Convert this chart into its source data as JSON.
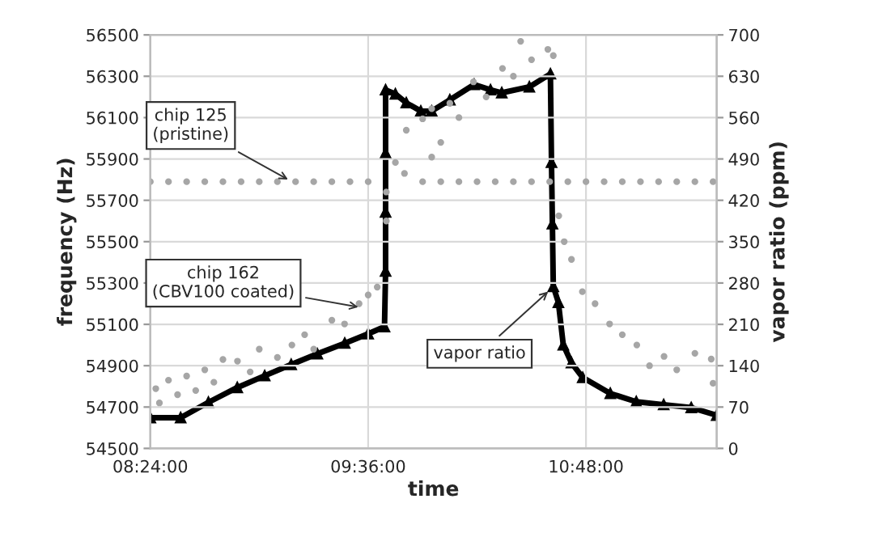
{
  "chart_data": {
    "type": "scatter",
    "xlabel": "time",
    "ylabel": "frequency (Hz)",
    "y2label": "vapor ratio (ppm)",
    "xlim": [
      8.4,
      11.52
    ],
    "xticks": [
      {
        "value": 8.4,
        "label": "08:24:00"
      },
      {
        "value": 9.6,
        "label": "09:36:00"
      },
      {
        "value": 10.8,
        "label": "10:48:00"
      }
    ],
    "ylim": [
      54500,
      56500
    ],
    "yticks": [
      54500,
      54700,
      54900,
      55100,
      55300,
      55500,
      55700,
      55900,
      56100,
      56300,
      56500
    ],
    "y2lim": [
      0,
      700
    ],
    "y2ticks": [
      0,
      70,
      140,
      210,
      280,
      350,
      420,
      490,
      560,
      630,
      700
    ],
    "grid": true,
    "legend": false,
    "series": [
      {
        "marker": "circle",
        "color": "#a6a6a6",
        "x": [
          8.4,
          8.5,
          8.6,
          8.7,
          8.8,
          8.9,
          9.0,
          9.1,
          9.2,
          9.3,
          9.4,
          9.5,
          9.6,
          9.7,
          9.8,
          9.9,
          10.0,
          10.1,
          10.2,
          10.3,
          10.4,
          10.5,
          10.6,
          10.7,
          10.8,
          10.9,
          11.0,
          11.1,
          11.2,
          11.3,
          11.4,
          11.5
        ],
        "values": [
          55790,
          55790,
          55790,
          55790,
          55790,
          55790,
          55790,
          55790,
          55790,
          55790,
          55790,
          55790,
          55790,
          55740,
          55830,
          55790,
          55790,
          55790,
          55790,
          55790,
          55790,
          55790,
          55790,
          55790,
          55790,
          55790,
          55790,
          55790,
          55790,
          55790,
          55790,
          55790
        ]
      },
      {
        "marker": "circle",
        "color": "#a6a6a6",
        "x": [
          8.43,
          8.45,
          8.5,
          8.55,
          8.6,
          8.65,
          8.7,
          8.75,
          8.8,
          8.88,
          8.95,
          9.0,
          9.1,
          9.18,
          9.25,
          9.3,
          9.4,
          9.47,
          9.55,
          9.6,
          9.65,
          9.7,
          9.75,
          9.81,
          9.9,
          9.95,
          9.95,
          10.0,
          10.05,
          10.1,
          10.18,
          10.25,
          10.34,
          10.4,
          10.44,
          10.5,
          10.59,
          10.62,
          10.65,
          10.68,
          10.72,
          10.78,
          10.85,
          10.93,
          11.0,
          11.08,
          11.15,
          11.23,
          11.3,
          11.4,
          11.49,
          11.5
        ],
        "values": [
          54789,
          54720,
          54830,
          54760,
          54850,
          54780,
          54880,
          54820,
          54930,
          54922,
          54870,
          54980,
          54940,
          55000,
          55050,
          54980,
          55120,
          55102,
          55200,
          55242,
          55280,
          55600,
          55883,
          56039,
          56094,
          56143,
          55909,
          55980,
          56169,
          56100,
          56273,
          56200,
          56338,
          56300,
          56469,
          56380,
          56430,
          56400,
          55625,
          55500,
          55414,
          55258,
          55200,
          55102,
          55050,
          55000,
          54900,
          54945,
          54880,
          54960,
          54932,
          54815
        ]
      },
      {
        "type": "line",
        "axis": "y2",
        "marker": "triangle",
        "line_style": "solid",
        "color": "#000000",
        "x": [
          8.4,
          8.567,
          8.72,
          8.879,
          9.03,
          9.176,
          9.32,
          9.471,
          9.6,
          9.69,
          9.696,
          9.696,
          9.696,
          9.696,
          9.75,
          9.81,
          9.89,
          9.95,
          10.05,
          10.184,
          10.274,
          10.336,
          10.488,
          10.604,
          10.61,
          10.615,
          10.62,
          10.648,
          10.675,
          10.72,
          10.782,
          10.934,
          11.077,
          11.228,
          11.38,
          11.52
        ],
        "values": [
          52,
          52,
          78,
          103,
          123,
          142,
          160,
          178,
          194,
          206,
          300,
          400,
          500,
          607,
          600,
          585,
          571,
          571,
          590,
          616,
          607,
          602,
          612,
          634,
          484,
          380,
          274,
          247,
          175,
          145,
          120,
          93,
          79,
          74,
          69,
          56
        ]
      }
    ],
    "annotations": [
      {
        "text": "chip 125\n(pristine)",
        "x": 9.18,
        "y": 55790
      },
      {
        "text": "chip 162\n(CBV100 coated)",
        "x": 9.57,
        "y": 55180
      },
      {
        "text": "vapor ratio",
        "x": 10.61,
        "y": 55273
      }
    ]
  }
}
